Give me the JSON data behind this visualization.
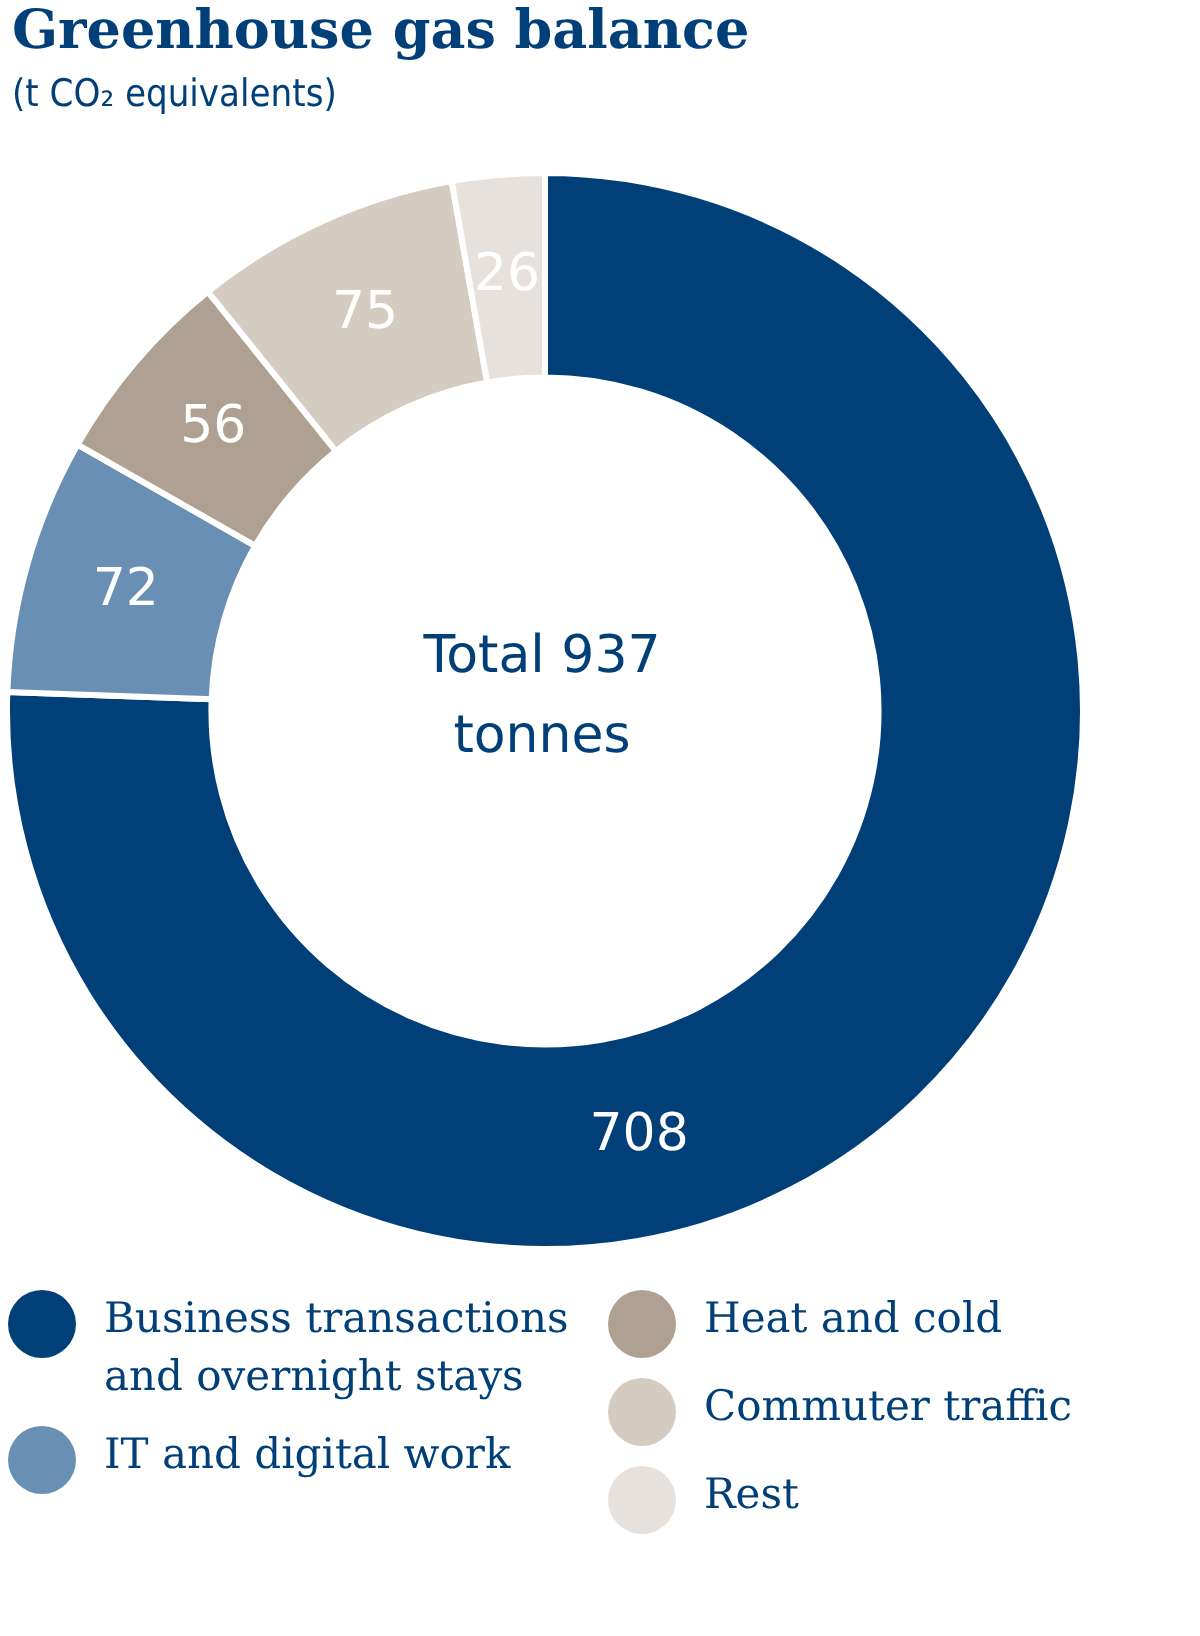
{
  "chart_data": {
    "type": "donut",
    "title": "Greenhouse gas balance",
    "subtitle": "(t CO₂ equivalents)",
    "categories": [
      "Business transactions and overnight stays",
      "IT and digital work",
      "Heat and cold",
      "Commuter traffic",
      "Rest"
    ],
    "values": [
      708,
      72,
      56,
      75,
      26
    ],
    "colors": [
      "#003f78",
      "#6a8fb4",
      "#afa192",
      "#d4cbc1",
      "#e6e1dc"
    ],
    "data_labels": true,
    "legend": "bottom",
    "annotations": [
      "Total 937 tonnes"
    ]
  }
}
